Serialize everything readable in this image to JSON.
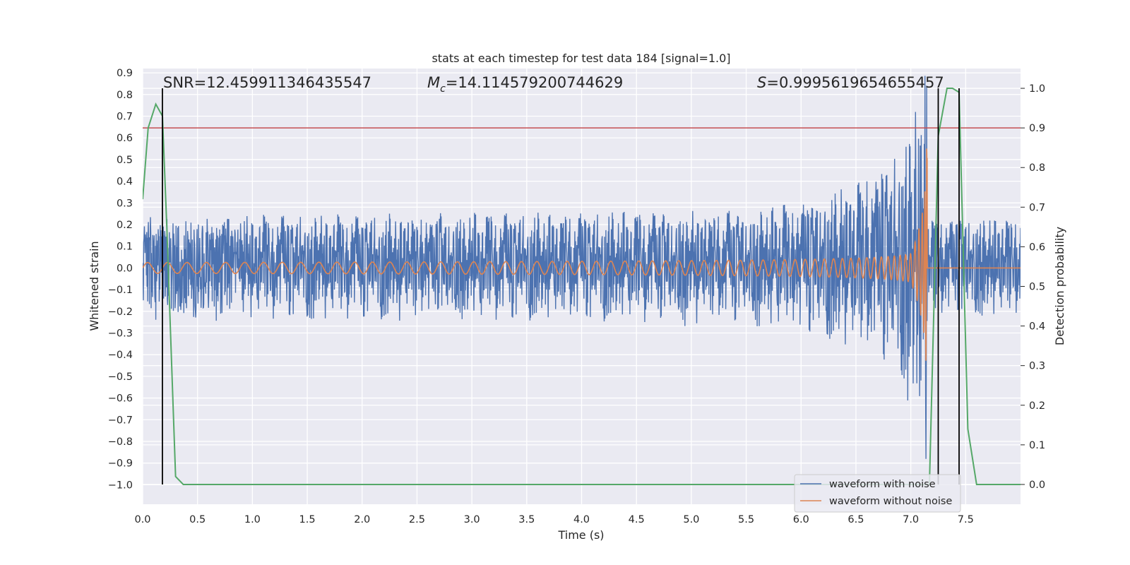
{
  "chart_data": {
    "type": "line",
    "title": "stats at each timestep for test data 184 [signal=1.0]",
    "xlabel": "Time (s)",
    "ylabel_left": "Whitened strain",
    "ylabel_right": "Detection probability",
    "xlim": [
      0.0,
      8.0
    ],
    "ylim_left": [
      -1.09,
      0.92
    ],
    "ylim_right": [
      -0.05,
      1.05
    ],
    "x_ticks": [
      "0.0",
      "0.5",
      "1.0",
      "1.5",
      "2.0",
      "2.5",
      "3.0",
      "3.5",
      "4.0",
      "4.5",
      "5.0",
      "5.5",
      "6.0",
      "6.5",
      "7.0",
      "7.5"
    ],
    "y_left_ticks": [
      "0.9",
      "0.8",
      "0.7",
      "0.6",
      "0.5",
      "0.4",
      "0.3",
      "0.2",
      "0.1",
      "0.0",
      "−0.1",
      "−0.2",
      "−0.3",
      "−0.4",
      "−0.5",
      "−0.6",
      "−0.7",
      "−0.8",
      "−0.9",
      "−1.0"
    ],
    "y_right_ticks": [
      "1.0",
      "0.9",
      "0.8",
      "0.7",
      "0.6",
      "0.5",
      "0.4",
      "0.3",
      "0.2",
      "0.1",
      "0.0"
    ],
    "grid": true,
    "legend_position": "lower right",
    "annotations": {
      "snr": "SNR=12.459911346435547",
      "mc_symbol": "M",
      "mc_subscript": "c",
      "mc_value": "=14.114579200744629",
      "s_symbol": "S",
      "s_value": "=0.9995619654655457"
    },
    "series": [
      {
        "name": "waveform with noise",
        "axis": "left",
        "color": "#4c72b0",
        "envelope": {
          "t": [
            0.0,
            5.5,
            6.0,
            6.5,
            6.8,
            7.0,
            7.1,
            7.15,
            7.16,
            8.0
          ],
          "amp": [
            0.22,
            0.24,
            0.28,
            0.36,
            0.45,
            0.58,
            0.72,
            0.85,
            0.22,
            0.22
          ]
        }
      },
      {
        "name": "waveform without noise",
        "axis": "left",
        "color": "#dd8452",
        "chirp": {
          "t_start": 0.0,
          "t_merge": 7.15,
          "cycles_start_hz": 5.5,
          "amp_start": 0.025,
          "amp_peak": 0.82
        }
      },
      {
        "axis": "right",
        "color": "#55a868",
        "x": [
          0.0,
          0.05,
          0.12,
          0.18,
          0.22,
          0.3,
          0.37,
          7.1,
          7.17,
          7.25,
          7.33,
          7.38,
          7.44,
          7.52,
          7.6,
          8.0
        ],
        "y": [
          0.72,
          0.9,
          0.96,
          0.93,
          0.65,
          0.02,
          0.0,
          0.0,
          0.0,
          0.88,
          1.0,
          1.0,
          0.99,
          0.14,
          0.0,
          0.0
        ]
      }
    ],
    "threshold": {
      "axis": "right",
      "value": 0.9,
      "color": "#c44e52"
    },
    "vertical_lines": {
      "x": [
        0.18,
        7.25,
        7.44
      ],
      "color": "#000000",
      "y_right_range": [
        0.0,
        1.0
      ]
    }
  }
}
